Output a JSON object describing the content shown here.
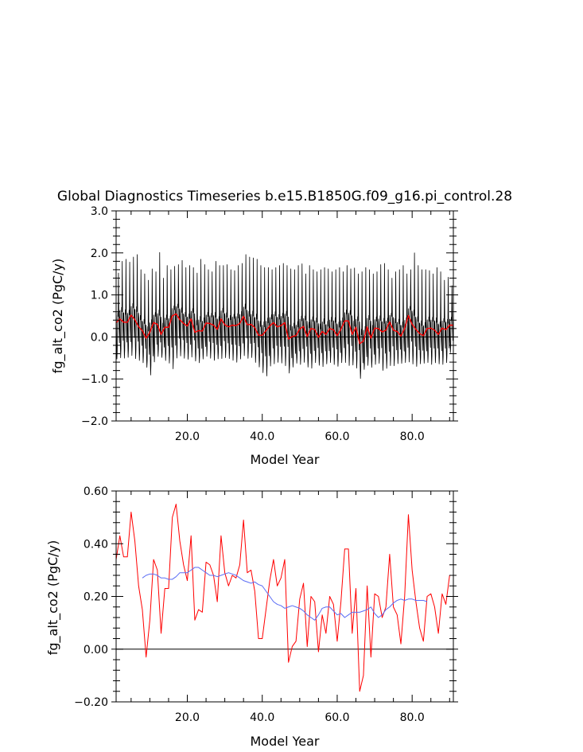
{
  "chart_data": [
    {
      "type": "line",
      "title": "Global Diagnostics Timeseries b.e15.B1850G.f09_g16.pi_control.28",
      "xlabel": "Model Year",
      "ylabel": "fg_alt_co2 (PgC/y)",
      "xlim": [
        1,
        91
      ],
      "ylim": [
        -2.0,
        3.0
      ],
      "x_ticks": [
        20,
        40,
        60,
        80
      ],
      "x_tick_labels": [
        "20.0",
        "40.0",
        "60.0",
        "80.0"
      ],
      "y_ticks": [
        -2,
        -1,
        0,
        1,
        2,
        3
      ],
      "y_tick_labels": [
        "−2.0",
        "−1.0",
        "0.0",
        "1.0",
        "2.0",
        "3.0"
      ],
      "reference_line_y": 0,
      "grid": false,
      "series": [
        {
          "kind": "monthly",
          "color": "#000000",
          "x_start": 1.0417,
          "x_step": 0.08333,
          "annual_peaks": [
            1.52,
            1.8,
            1.85,
            1.78,
            1.9,
            1.96,
            1.6,
            1.5,
            1.35,
            1.62,
            1.55,
            2.01,
            1.4,
            1.7,
            1.6,
            1.68,
            1.72,
            1.82,
            1.65,
            1.7,
            1.65,
            1.52,
            1.85,
            1.72,
            1.6,
            1.55,
            1.8,
            1.7,
            1.7,
            1.72,
            1.6,
            1.58,
            1.7,
            1.75,
            1.96,
            1.9,
            1.88,
            1.85,
            1.7,
            1.65,
            1.65,
            1.6,
            1.65,
            1.7,
            1.75,
            1.7,
            1.62,
            1.6,
            1.7,
            1.74,
            1.5,
            1.7,
            1.6,
            1.55,
            1.6,
            1.65,
            1.62,
            1.55,
            1.6,
            1.65,
            1.55,
            1.7,
            1.62,
            1.64,
            1.5,
            1.55,
            1.65,
            1.6,
            1.5,
            1.55,
            1.72,
            1.75,
            1.6,
            1.4,
            1.55,
            1.6,
            1.7,
            1.5,
            1.6,
            2.0,
            1.7,
            1.6,
            1.6,
            1.58,
            1.5,
            1.65,
            1.55,
            1.35,
            1.42,
            1.22
          ],
          "annual_troughs": [
            -0.62,
            -0.6,
            -0.6,
            -0.58,
            -0.55,
            -0.62,
            -0.65,
            -0.7,
            -0.8,
            -1.02,
            -0.7,
            -0.55,
            -0.55,
            -0.65,
            -0.72,
            -0.9,
            -0.62,
            -0.55,
            -0.6,
            -0.62,
            -0.58,
            -0.65,
            -0.7,
            -0.6,
            -0.55,
            -0.6,
            -0.65,
            -0.6,
            -0.62,
            -0.58,
            -0.6,
            -0.65,
            -0.7,
            -0.62,
            -0.55,
            -0.6,
            -0.58,
            -0.7,
            -0.8,
            -0.95,
            -1.05,
            -0.8,
            -0.75,
            -0.7,
            -0.72,
            -0.8,
            -0.95,
            -0.8,
            -0.7,
            -0.75,
            -0.7,
            -0.8,
            -0.85,
            -0.7,
            -0.75,
            -0.8,
            -0.72,
            -0.7,
            -0.75,
            -0.78,
            -0.7,
            -0.72,
            -0.8,
            -0.75,
            -0.85,
            -1.08,
            -0.85,
            -0.78,
            -0.8,
            -0.75,
            -0.72,
            -0.9,
            -0.85,
            -0.8,
            -0.78,
            -0.72,
            -0.7,
            -0.7,
            -0.72,
            -0.75,
            -0.8,
            -0.72,
            -0.7,
            -0.7,
            -0.75,
            -0.7,
            -0.72,
            -0.75,
            -0.7,
            -0.45
          ]
        },
        {
          "kind": "annual-mean",
          "color": "#ff0000",
          "x": [
            1,
            2,
            3,
            4,
            5,
            6,
            7,
            8,
            9,
            10,
            11,
            12,
            13,
            14,
            15,
            16,
            17,
            18,
            19,
            20,
            21,
            22,
            23,
            24,
            25,
            26,
            27,
            28,
            29,
            30,
            31,
            32,
            33,
            34,
            35,
            36,
            37,
            38,
            39,
            40,
            41,
            42,
            43,
            44,
            45,
            46,
            47,
            48,
            49,
            50,
            51,
            52,
            53,
            54,
            55,
            56,
            57,
            58,
            59,
            60,
            61,
            62,
            63,
            64,
            65,
            66,
            67,
            68,
            69,
            70,
            71,
            72,
            73,
            74,
            75,
            76,
            77,
            78,
            79,
            80,
            81,
            82,
            83,
            84,
            85,
            86,
            87,
            88,
            89,
            90,
            91
          ],
          "values": [
            0.34,
            0.43,
            0.35,
            0.35,
            0.52,
            0.41,
            0.24,
            0.15,
            -0.03,
            0.11,
            0.34,
            0.3,
            0.06,
            0.23,
            0.23,
            0.5,
            0.55,
            0.41,
            0.32,
            0.26,
            0.43,
            0.11,
            0.15,
            0.14,
            0.33,
            0.32,
            0.28,
            0.18,
            0.43,
            0.29,
            0.24,
            0.28,
            0.27,
            0.32,
            0.49,
            0.29,
            0.3,
            0.22,
            0.04,
            0.04,
            0.15,
            0.26,
            0.34,
            0.24,
            0.27,
            0.34,
            -0.05,
            0.01,
            0.03,
            0.19,
            0.25,
            0.01,
            0.2,
            0.18,
            -0.01,
            0.13,
            0.06,
            0.2,
            0.17,
            0.03,
            0.18,
            0.38,
            0.38,
            0.06,
            0.23,
            -0.16,
            -0.1,
            0.24,
            -0.03,
            0.21,
            0.2,
            0.12,
            0.16,
            0.36,
            0.16,
            0.13,
            0.02,
            0.2,
            0.51,
            0.3,
            0.18,
            0.08,
            0.03,
            0.2,
            0.21,
            0.16,
            0.06,
            0.21,
            0.17,
            0.28,
            0.28
          ]
        }
      ]
    },
    {
      "type": "line",
      "title": "",
      "xlabel": "Model Year",
      "ylabel": "fg_alt_co2 (PgC/y)",
      "xlim": [
        1,
        91
      ],
      "ylim": [
        -0.2,
        0.6
      ],
      "x_ticks": [
        20,
        40,
        60,
        80
      ],
      "x_tick_labels": [
        "20.0",
        "40.0",
        "60.0",
        "80.0"
      ],
      "y_ticks": [
        -0.2,
        0,
        0.2,
        0.4,
        0.6
      ],
      "y_tick_labels": [
        "−0.20",
        "0.00",
        "0.20",
        "0.40",
        "0.60"
      ],
      "reference_line_y": 0,
      "grid": false,
      "series": [
        {
          "kind": "annual-mean",
          "color": "#ff0000",
          "x": [
            1,
            2,
            3,
            4,
            5,
            6,
            7,
            8,
            9,
            10,
            11,
            12,
            13,
            14,
            15,
            16,
            17,
            18,
            19,
            20,
            21,
            22,
            23,
            24,
            25,
            26,
            27,
            28,
            29,
            30,
            31,
            32,
            33,
            34,
            35,
            36,
            37,
            38,
            39,
            40,
            41,
            42,
            43,
            44,
            45,
            46,
            47,
            48,
            49,
            50,
            51,
            52,
            53,
            54,
            55,
            56,
            57,
            58,
            59,
            60,
            61,
            62,
            63,
            64,
            65,
            66,
            67,
            68,
            69,
            70,
            71,
            72,
            73,
            74,
            75,
            76,
            77,
            78,
            79,
            80,
            81,
            82,
            83,
            84,
            85,
            86,
            87,
            88,
            89,
            90,
            91
          ],
          "values": [
            0.34,
            0.43,
            0.35,
            0.35,
            0.52,
            0.41,
            0.24,
            0.15,
            -0.03,
            0.11,
            0.34,
            0.3,
            0.06,
            0.23,
            0.23,
            0.5,
            0.55,
            0.41,
            0.32,
            0.26,
            0.43,
            0.11,
            0.15,
            0.14,
            0.33,
            0.32,
            0.28,
            0.18,
            0.43,
            0.29,
            0.24,
            0.28,
            0.27,
            0.32,
            0.49,
            0.29,
            0.3,
            0.22,
            0.04,
            0.04,
            0.15,
            0.26,
            0.34,
            0.24,
            0.27,
            0.34,
            -0.05,
            0.01,
            0.03,
            0.19,
            0.25,
            0.01,
            0.2,
            0.18,
            -0.01,
            0.13,
            0.06,
            0.2,
            0.17,
            0.03,
            0.18,
            0.38,
            0.38,
            0.06,
            0.23,
            -0.16,
            -0.1,
            0.24,
            -0.03,
            0.21,
            0.2,
            0.12,
            0.16,
            0.36,
            0.16,
            0.13,
            0.02,
            0.2,
            0.51,
            0.3,
            0.18,
            0.08,
            0.03,
            0.2,
            0.21,
            0.16,
            0.06,
            0.21,
            0.17,
            0.28,
            0.28
          ]
        },
        {
          "kind": "running-mean",
          "color": "#5a6cf5",
          "x": [
            8,
            9,
            10,
            11,
            12,
            13,
            14,
            15,
            16,
            17,
            18,
            19,
            20,
            21,
            22,
            23,
            24,
            25,
            26,
            27,
            28,
            29,
            30,
            31,
            32,
            33,
            34,
            35,
            36,
            37,
            38,
            39,
            40,
            41,
            42,
            43,
            44,
            45,
            46,
            47,
            48,
            49,
            50,
            51,
            52,
            53,
            54,
            55,
            56,
            57,
            58,
            59,
            60,
            61,
            62,
            63,
            64,
            65,
            66,
            67,
            68,
            69,
            70,
            71,
            72,
            73,
            74,
            75,
            76,
            77,
            78,
            79,
            80,
            81,
            82,
            83,
            84
          ],
          "values": [
            0.27,
            0.28,
            0.285,
            0.285,
            0.28,
            0.27,
            0.27,
            0.265,
            0.265,
            0.275,
            0.29,
            0.29,
            0.29,
            0.3,
            0.31,
            0.31,
            0.3,
            0.29,
            0.28,
            0.28,
            0.275,
            0.28,
            0.285,
            0.29,
            0.285,
            0.28,
            0.27,
            0.26,
            0.255,
            0.25,
            0.255,
            0.245,
            0.24,
            0.22,
            0.2,
            0.18,
            0.17,
            0.165,
            0.155,
            0.16,
            0.165,
            0.16,
            0.155,
            0.145,
            0.13,
            0.12,
            0.11,
            0.13,
            0.155,
            0.16,
            0.16,
            0.145,
            0.13,
            0.135,
            0.12,
            0.13,
            0.14,
            0.14,
            0.14,
            0.145,
            0.15,
            0.16,
            0.135,
            0.12,
            0.13,
            0.15,
            0.16,
            0.175,
            0.185,
            0.19,
            0.185,
            0.19,
            0.19,
            0.185,
            0.185,
            0.185,
            0.18
          ]
        }
      ]
    }
  ]
}
